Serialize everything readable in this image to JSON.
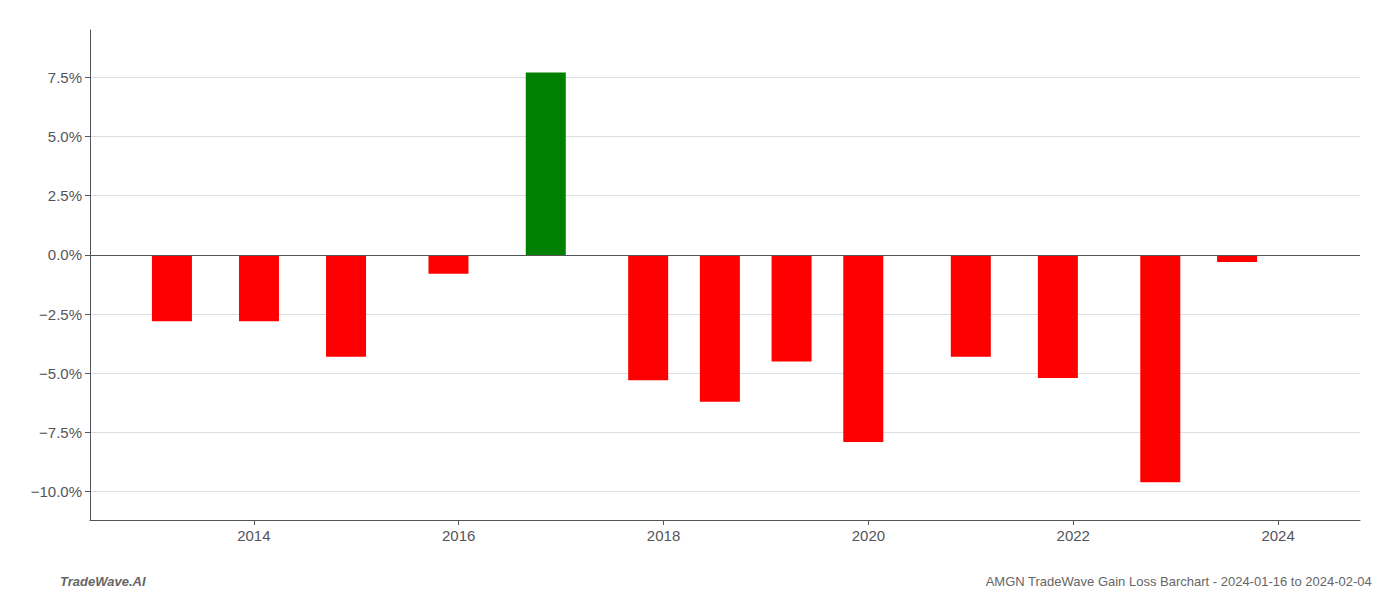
{
  "chart_data": {
    "type": "bar",
    "x": [
      2013.2,
      2014.05,
      2014.9,
      2015.9,
      2016.85,
      2017.85,
      2018.55,
      2019.25,
      2019.95,
      2021.0,
      2021.85,
      2022.85,
      2023.6
    ],
    "values": [
      -0.028,
      -0.028,
      -0.043,
      -0.008,
      0.077,
      -0.053,
      -0.062,
      -0.045,
      -0.079,
      -0.043,
      -0.052,
      -0.096,
      -0.003
    ],
    "colors": [
      "#ff0000",
      "#ff0000",
      "#ff0000",
      "#ff0000",
      "#008000",
      "#ff0000",
      "#ff0000",
      "#ff0000",
      "#ff0000",
      "#ff0000",
      "#ff0000",
      "#ff0000",
      "#ff0000"
    ],
    "xlim": [
      2012.4,
      2024.8
    ],
    "xticks": [
      2014,
      2016,
      2018,
      2020,
      2022,
      2024
    ],
    "ylim": [
      -0.112,
      0.095
    ],
    "yticks": [
      {
        "value": -0.1,
        "label": "−10.0%"
      },
      {
        "value": -0.075,
        "label": "−7.5%"
      },
      {
        "value": -0.05,
        "label": "−5.0%"
      },
      {
        "value": -0.025,
        "label": "−2.5%"
      },
      {
        "value": 0,
        "label": "0.0%"
      },
      {
        "value": 0.025,
        "label": "2.5%"
      },
      {
        "value": 0.05,
        "label": "5.0%"
      },
      {
        "value": 0.075,
        "label": "7.5%"
      }
    ],
    "grid": true,
    "annotations": [
      "TradeWave.AI",
      "AMGN TradeWave Gain Loss Barchart - 2024-01-16 to 2024-02-04"
    ]
  }
}
